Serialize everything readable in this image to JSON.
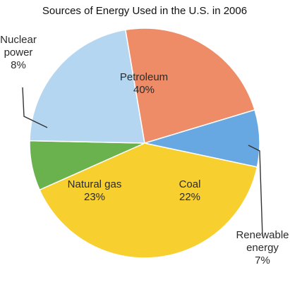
{
  "chart_data": {
    "type": "pie",
    "title": "Sources of Energy Used in the U.S. in 2006",
    "slices": [
      {
        "label": "Petroleum",
        "value": 40,
        "value_label": "40%",
        "color": "#F7CF2E"
      },
      {
        "label": "Renewable energy",
        "value": 7,
        "value_label": "7%",
        "color": "#6AB24E"
      },
      {
        "label": "Coal",
        "value": 22,
        "value_label": "22%",
        "color": "#B4D6F0"
      },
      {
        "label": "Natural gas",
        "value": 23,
        "value_label": "23%",
        "color": "#EE8C68"
      },
      {
        "label": "Nuclear power",
        "value": 8,
        "value_label": "8%",
        "color": "#67A7E2"
      }
    ],
    "label_lines": {
      "Petroleum": [
        "Petroleum"
      ],
      "Renewable energy": [
        "Renewable",
        "energy"
      ],
      "Coal": [
        "Coal"
      ],
      "Natural gas": [
        "Natural gas"
      ],
      "Nuclear power": [
        "Nuclear",
        "power"
      ]
    },
    "legend": "none"
  }
}
